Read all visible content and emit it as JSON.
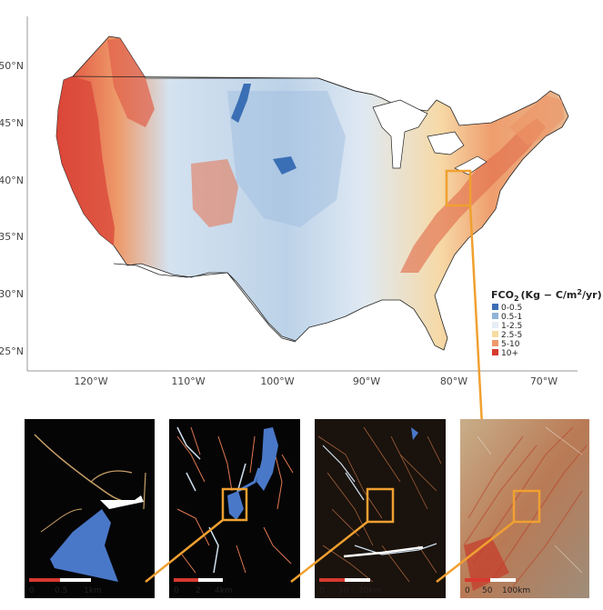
{
  "map": {
    "lat_labels": [
      "50°N",
      "45°N",
      "40°N",
      "35°N",
      "30°N",
      "25°N"
    ],
    "lon_labels": [
      "120°W",
      "110°W",
      "100°W",
      "90°W",
      "80°W",
      "70°W"
    ]
  },
  "legend": {
    "title_prefix": "FCO",
    "title_sub": "2",
    "title_unit": "(Kg − C/m",
    "title_sup": "2",
    "title_end": "/yr)",
    "items": [
      {
        "label": "0-0.5",
        "color": "#3a6fb5"
      },
      {
        "label": "0.5-1",
        "color": "#8fb4d9"
      },
      {
        "label": "1-2.5",
        "color": "#e6eef5"
      },
      {
        "label": "2.5-5",
        "color": "#f5dca0"
      },
      {
        "label": "5-10",
        "color": "#ee9a6a"
      },
      {
        "label": "10+",
        "color": "#d73a2f"
      }
    ]
  },
  "colors": {
    "highlight": "#f0a030",
    "water_blue": "#4a78c8",
    "panel_bg": "#0a0a0a"
  },
  "insets": [
    {
      "scale": [
        "0",
        "0.5",
        "1km"
      ]
    },
    {
      "scale": [
        "0",
        "2",
        "4km"
      ]
    },
    {
      "scale": [
        "0",
        "10",
        "20km"
      ]
    },
    {
      "scale": [
        "0",
        "50",
        "100km"
      ]
    }
  ]
}
